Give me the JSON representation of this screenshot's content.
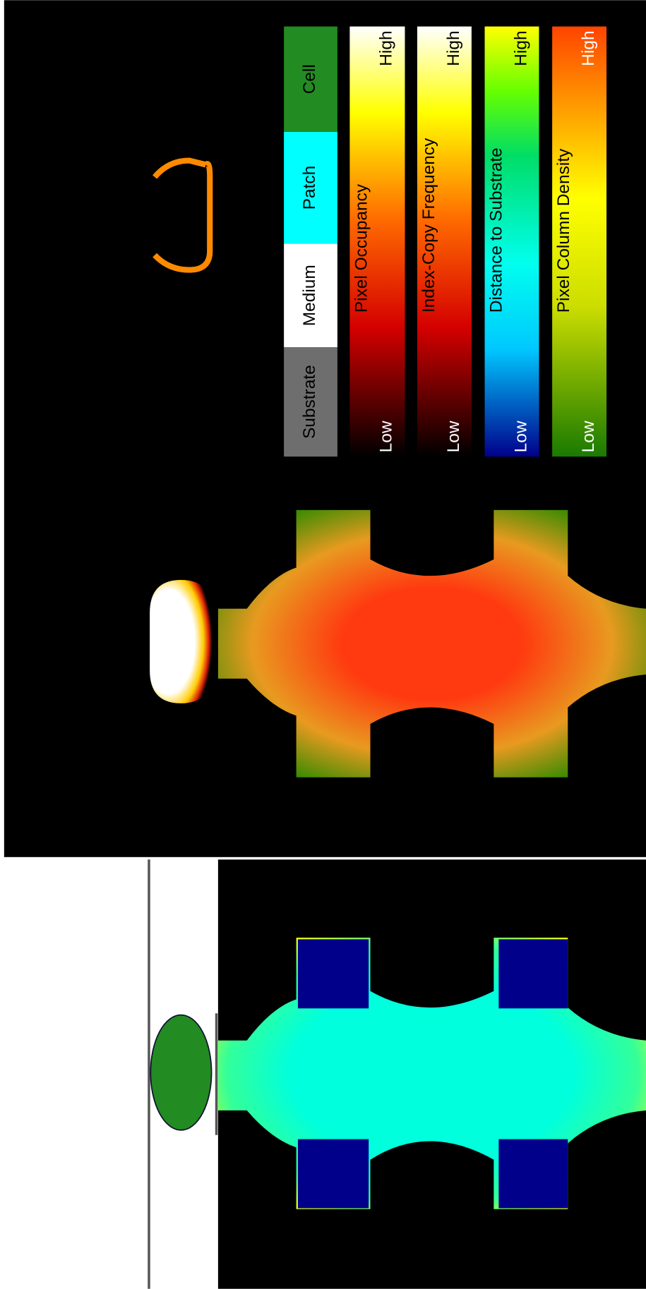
{
  "legend": {
    "items": [
      {
        "label": "Substrate",
        "color": "#6e6e6e"
      },
      {
        "label": "Medium",
        "color": "#ffffff"
      },
      {
        "label": "Patch",
        "color": "#00ffff"
      },
      {
        "label": "Cell",
        "color": "#228b22"
      }
    ]
  },
  "colorbars": [
    {
      "title": "Pixel Occupancy",
      "low": "Low",
      "high": "High"
    },
    {
      "title": "Index-Copy Frequency",
      "low": "Low",
      "high": "High"
    },
    {
      "title": "Distance to Substrate",
      "low": "Low",
      "high": "High"
    },
    {
      "title": "Pixel Column Density",
      "low": "Low",
      "high": "High"
    }
  ]
}
